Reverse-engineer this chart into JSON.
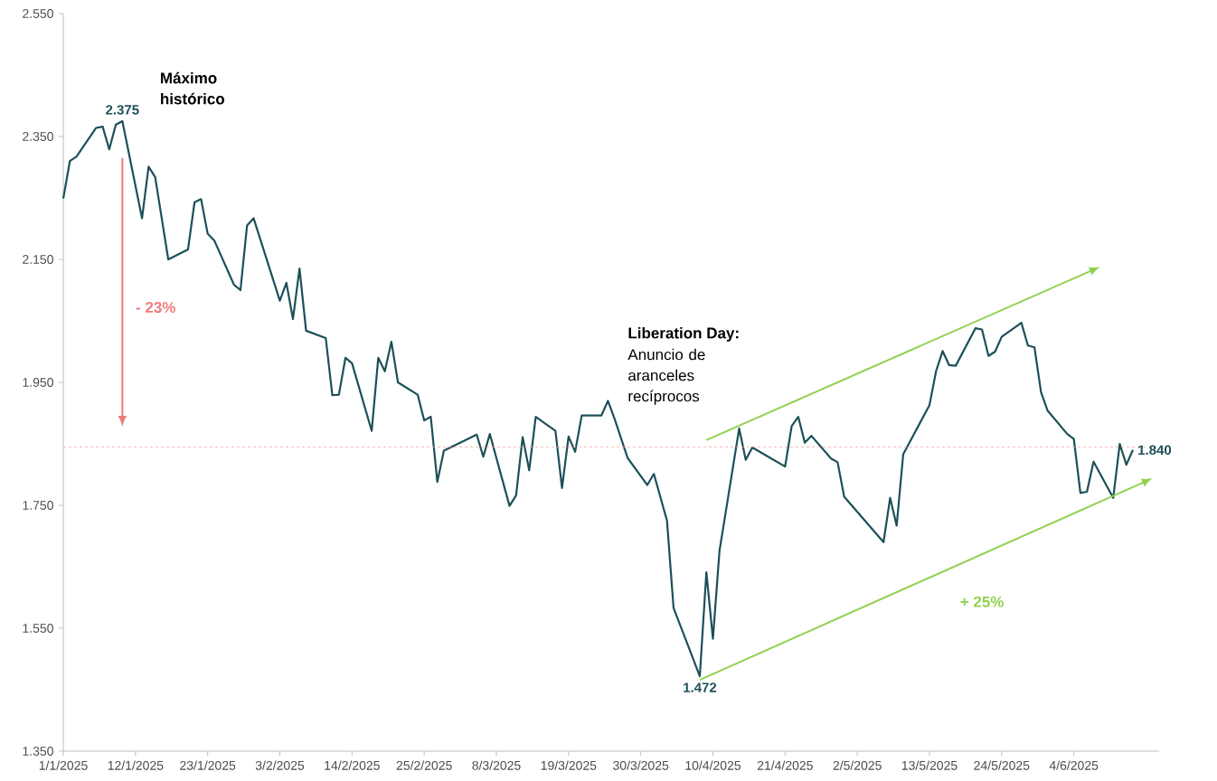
{
  "chart_data": {
    "type": "line",
    "marker": "none",
    "xlim": [
      "2025-01-01",
      "2025-06-17"
    ],
    "xticks": [
      {
        "value": "2025-01-01",
        "label": "1/1/2025"
      },
      {
        "value": "2025-01-12",
        "label": "12/1/2025"
      },
      {
        "value": "2025-01-23",
        "label": "23/1/2025"
      },
      {
        "value": "2025-02-03",
        "label": "3/2/2025"
      },
      {
        "value": "2025-02-14",
        "label": "14/2/2025"
      },
      {
        "value": "2025-02-25",
        "label": "25/2/2025"
      },
      {
        "value": "2025-03-08",
        "label": "8/3/2025"
      },
      {
        "value": "2025-03-19",
        "label": "19/3/2025"
      },
      {
        "value": "2025-03-30",
        "label": "30/3/2025"
      },
      {
        "value": "2025-04-10",
        "label": "10/4/2025"
      },
      {
        "value": "2025-04-21",
        "label": "21/4/2025"
      },
      {
        "value": "2025-05-02",
        "label": "2/5/2025"
      },
      {
        "value": "2025-05-13",
        "label": "13/5/2025"
      },
      {
        "value": "2025-05-24",
        "label": "24/5/2025"
      },
      {
        "value": "2025-06-04",
        "label": "4/6/2025"
      }
    ],
    "ylim": [
      1350,
      2550
    ],
    "yticks": [
      {
        "value": 1350,
        "label": "1.350"
      },
      {
        "value": 1550,
        "label": "1.550"
      },
      {
        "value": 1750,
        "label": "1.750"
      },
      {
        "value": 1950,
        "label": "1.950"
      },
      {
        "value": 2150,
        "label": "2.150"
      },
      {
        "value": 2350,
        "label": "2.350"
      },
      {
        "value": 2550,
        "label": "2.550"
      }
    ],
    "series": [
      {
        "color": "#1d5059",
        "x": [
          "2025-01-01",
          "2025-01-02",
          "2025-01-03",
          "2025-01-06",
          "2025-01-07",
          "2025-01-08",
          "2025-01-09",
          "2025-01-10",
          "2025-01-13",
          "2025-01-14",
          "2025-01-15",
          "2025-01-17",
          "2025-01-20",
          "2025-01-21",
          "2025-01-22",
          "2025-01-23",
          "2025-01-24",
          "2025-01-27",
          "2025-01-28",
          "2025-01-29",
          "2025-01-30",
          "2025-02-03",
          "2025-02-04",
          "2025-02-05",
          "2025-02-06",
          "2025-02-07",
          "2025-02-10",
          "2025-02-11",
          "2025-02-12",
          "2025-02-13",
          "2025-02-14",
          "2025-02-17",
          "2025-02-18",
          "2025-02-19",
          "2025-02-20",
          "2025-02-21",
          "2025-02-24",
          "2025-02-25",
          "2025-02-26",
          "2025-02-27",
          "2025-02-28",
          "2025-03-05",
          "2025-03-06",
          "2025-03-07",
          "2025-03-10",
          "2025-03-11",
          "2025-03-12",
          "2025-03-13",
          "2025-03-14",
          "2025-03-17",
          "2025-03-18",
          "2025-03-19",
          "2025-03-20",
          "2025-03-21",
          "2025-03-24",
          "2025-03-25",
          "2025-03-26",
          "2025-03-27",
          "2025-03-28",
          "2025-03-31",
          "2025-04-01",
          "2025-04-03",
          "2025-04-04",
          "2025-04-08",
          "2025-04-09",
          "2025-04-10",
          "2025-04-11",
          "2025-04-14",
          "2025-04-15",
          "2025-04-16",
          "2025-04-21",
          "2025-04-22",
          "2025-04-23",
          "2025-04-24",
          "2025-04-25",
          "2025-04-28",
          "2025-04-29",
          "2025-04-30",
          "2025-05-06",
          "2025-05-07",
          "2025-05-08",
          "2025-05-09",
          "2025-05-13",
          "2025-05-14",
          "2025-05-15",
          "2025-05-16",
          "2025-05-17",
          "2025-05-20",
          "2025-05-21",
          "2025-05-22",
          "2025-05-23",
          "2025-05-24",
          "2025-05-27",
          "2025-05-28",
          "2025-05-29",
          "2025-05-30",
          "2025-05-31",
          "2025-06-03",
          "2025-06-04",
          "2025-06-05",
          "2025-06-06",
          "2025-06-07",
          "2025-06-10",
          "2025-06-11",
          "2025-06-12",
          "2025-06-13"
        ],
        "values": [
          2249,
          2310,
          2317,
          2364,
          2366,
          2329,
          2369,
          2375,
          2217,
          2301,
          2284,
          2150,
          2166,
          2243,
          2248,
          2192,
          2181,
          2109,
          2100,
          2205,
          2217,
          2083,
          2112,
          2053,
          2135,
          2034,
          2022,
          1929,
          1930,
          1990,
          1981,
          1871,
          1990,
          1968,
          2016,
          1950,
          1930,
          1888,
          1894,
          1788,
          1839,
          1865,
          1829,
          1866,
          1749,
          1766,
          1861,
          1807,
          1894,
          1871,
          1778,
          1862,
          1837,
          1896,
          1896,
          1920,
          1891,
          1859,
          1827,
          1783,
          1801,
          1725,
          1583,
          1472,
          1641,
          1533,
          1676,
          1875,
          1824,
          1844,
          1813,
          1879,
          1894,
          1852,
          1863,
          1826,
          1820,
          1764,
          1690,
          1762,
          1717,
          1833,
          1913,
          1968,
          2001,
          1978,
          1977,
          2038,
          2036,
          1993,
          2000,
          2024,
          2047,
          2010,
          2007,
          1934,
          1904,
          1866,
          1858,
          1770,
          1772,
          1821,
          1762,
          1850,
          1816,
          1840
        ]
      }
    ],
    "ref_lines": [
      {
        "axis": "y",
        "value": 1845,
        "color": "#f4a3a3",
        "line_style": "dashed"
      }
    ],
    "annotations": [
      "Máximo histórico",
      "- 23%",
      "Liberation Day:",
      "Anuncio de aranceles recíprocos",
      "+ 25%",
      {
        "text": "2.375",
        "x": "2025-01-10",
        "y": 2375
      },
      {
        "text": "1.472",
        "x": "2025-04-08",
        "y": 1472
      },
      {
        "text": "1.840",
        "x": "2025-06-13",
        "y": 1840
      }
    ]
  }
}
